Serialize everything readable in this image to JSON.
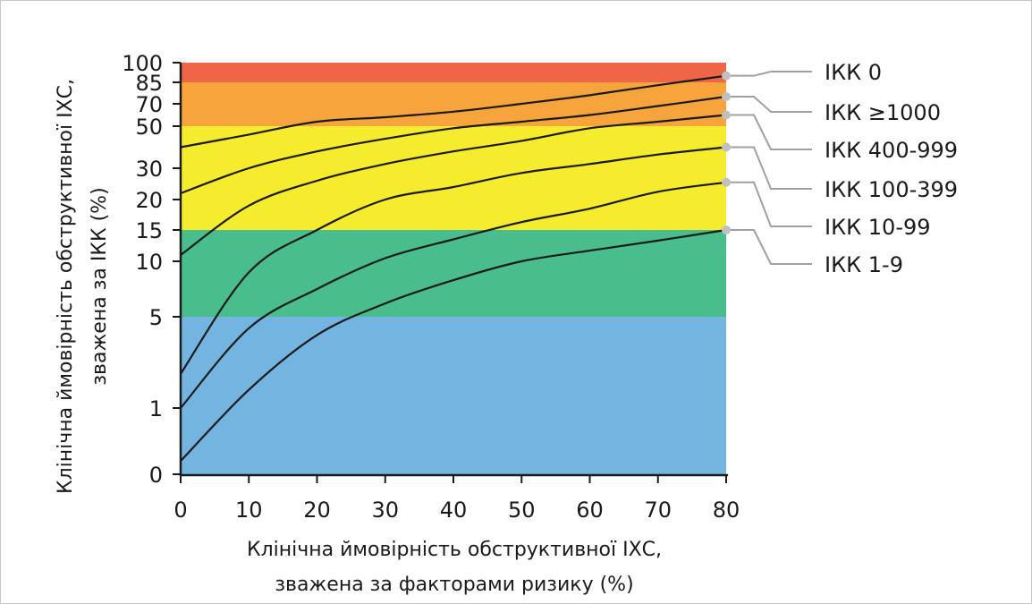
{
  "chart_data": {
    "type": "line",
    "x_axis": {
      "label_line1": "Клінічна ймовірність обструктивної ІХС,",
      "label_line2": "зважена за факторами ризику (%)",
      "range": [
        0,
        80
      ],
      "ticks": [
        "0",
        "10",
        "20",
        "30",
        "40",
        "50",
        "60",
        "70",
        "80"
      ]
    },
    "y_axis": {
      "label_line1": "Клінічна ймовірність обструктивної ІХС,",
      "label_line2": "зважена за ІКК (%)",
      "range": [
        0,
        100
      ],
      "scale": "nonlinear",
      "ticks": [
        "0",
        "1",
        "5",
        "10",
        "15",
        "20",
        "30",
        "50",
        "70",
        "85",
        "100"
      ]
    },
    "bands": [
      {
        "name": "very-low",
        "from": 0,
        "to": 5,
        "color": "#74b4e0"
      },
      {
        "name": "low",
        "from": 5,
        "to": 15,
        "color": "#4abd8c"
      },
      {
        "name": "intermediate",
        "from": 15,
        "to": 50,
        "color": "#f6ec2e"
      },
      {
        "name": "high",
        "from": 50,
        "to": 85,
        "color": "#f7a43d"
      },
      {
        "name": "very-high",
        "from": 85,
        "to": 100,
        "color": "#ee6548"
      }
    ],
    "series": [
      {
        "name": "ІКК 0",
        "x": [
          0,
          10,
          20,
          30,
          40,
          50,
          60,
          70,
          80
        ],
        "y": [
          40,
          46,
          54,
          58,
          63,
          70,
          76,
          83,
          90
        ]
      },
      {
        "name": "ІКК ≥1000",
        "x": [
          0,
          10,
          20,
          30,
          40,
          50,
          60,
          70,
          80
        ],
        "y": [
          22,
          30,
          38,
          44,
          49,
          54,
          60,
          68,
          75
        ]
      },
      {
        "name": "ІКК 400-999",
        "x": [
          0,
          10,
          20,
          30,
          40,
          50,
          60,
          70,
          80
        ],
        "y": [
          11,
          19,
          26,
          32,
          38,
          43,
          49,
          54,
          60
        ]
      },
      {
        "name": "ІКК 100-399",
        "x": [
          0,
          10,
          20,
          30,
          40,
          50,
          60,
          70,
          80
        ],
        "y": [
          2.5,
          9,
          15,
          20,
          24,
          28.5,
          32,
          36.5,
          40
        ]
      },
      {
        "name": "ІКК 10-99",
        "x": [
          0,
          10,
          20,
          30,
          40,
          50,
          60,
          70,
          80
        ],
        "y": [
          1,
          4.5,
          7.5,
          10.5,
          13.5,
          16.3,
          18.5,
          22.5,
          25.5
        ]
      },
      {
        "name": "ІКК 1-9",
        "x": [
          0,
          10,
          20,
          30,
          40,
          50,
          60,
          70,
          80
        ],
        "y": [
          0.2,
          1.8,
          4.2,
          6.2,
          8.3,
          10,
          11.7,
          13.3,
          15
        ]
      }
    ],
    "legend_placement": "right",
    "grid": false,
    "colors": {
      "line": "#1a1a1a",
      "connector": "#a0a0a0",
      "marker": "#c0c0c0",
      "axis": "#1a1a1a"
    }
  }
}
